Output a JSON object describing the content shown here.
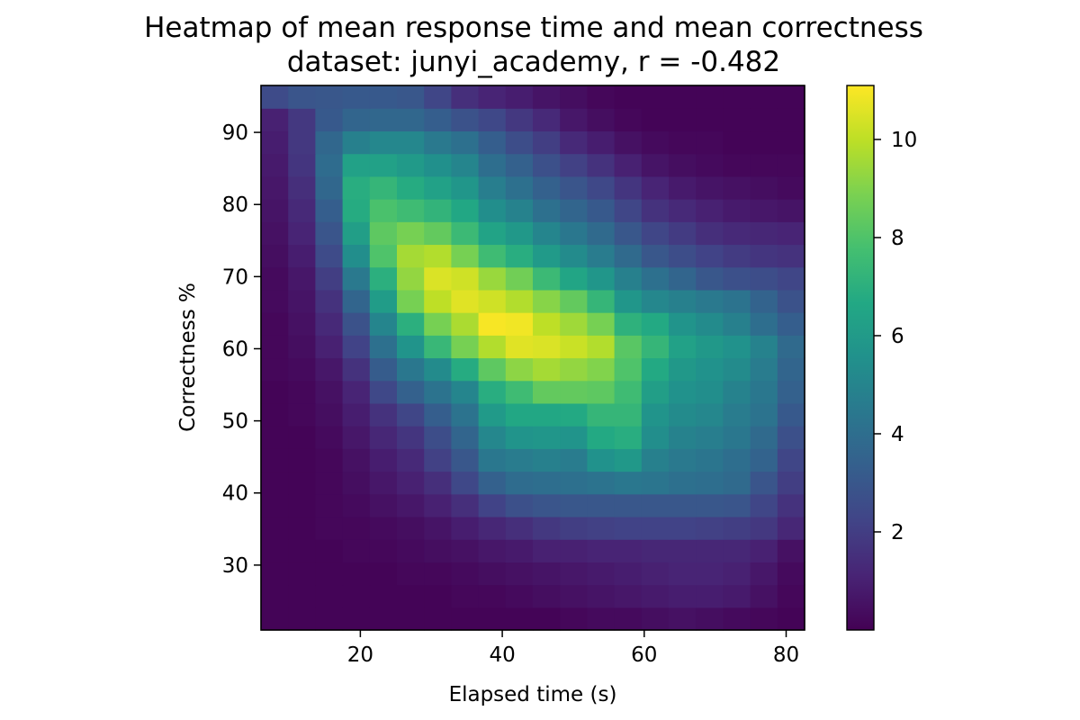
{
  "chart_data": {
    "type": "heatmap",
    "title": "Heatmap of mean response time and mean correctness",
    "subtitle": "dataset: junyi_academy, r = -0.482",
    "xlabel": "Elapsed time (s)",
    "ylabel": "Correctness %",
    "xlim": [
      6,
      82.6
    ],
    "ylim": [
      21,
      96.5
    ],
    "x_ticks": [
      20,
      40,
      60,
      80
    ],
    "y_ticks": [
      30,
      40,
      50,
      60,
      70,
      80,
      90
    ],
    "colorbar": {
      "range": [
        0,
        11.1
      ],
      "ticks": [
        2,
        4,
        6,
        8,
        10
      ],
      "colormap": "viridis"
    },
    "grid": false,
    "z": [
      [
        0.1,
        0.1,
        0.1,
        0.1,
        0.1,
        0.1,
        0.1,
        0.1,
        0.1,
        0.1,
        0.1,
        0.2,
        0.3,
        0.3,
        0.4,
        0.5,
        0.4,
        0.3,
        0.2,
        0.1
      ],
      [
        0.1,
        0.1,
        0.1,
        0.1,
        0.1,
        0.1,
        0.1,
        0.2,
        0.2,
        0.3,
        0.4,
        0.5,
        0.6,
        0.7,
        0.8,
        0.9,
        0.9,
        0.8,
        0.5,
        0.2
      ],
      [
        0.1,
        0.1,
        0.1,
        0.1,
        0.1,
        0.2,
        0.2,
        0.3,
        0.4,
        0.5,
        0.6,
        0.7,
        0.8,
        0.9,
        1.0,
        1.1,
        1.1,
        1.0,
        0.7,
        0.3
      ],
      [
        0.1,
        0.1,
        0.1,
        0.2,
        0.2,
        0.3,
        0.4,
        0.5,
        0.7,
        0.8,
        1.0,
        1.0,
        1.1,
        1.1,
        1.2,
        1.2,
        1.2,
        1.2,
        1.0,
        0.5
      ],
      [
        0.1,
        0.1,
        0.2,
        0.2,
        0.3,
        0.4,
        0.6,
        0.9,
        1.2,
        1.5,
        1.8,
        2.0,
        2.1,
        2.2,
        2.2,
        2.2,
        2.1,
        2.0,
        1.8,
        1.2
      ],
      [
        0.1,
        0.1,
        0.2,
        0.3,
        0.5,
        0.7,
        1.0,
        1.5,
        2.2,
        2.7,
        2.9,
        3.0,
        3.0,
        3.0,
        3.0,
        3.0,
        3.0,
        2.9,
        2.3,
        1.6
      ],
      [
        0.1,
        0.1,
        0.2,
        0.4,
        0.7,
        1.0,
        1.5,
        2.4,
        3.4,
        3.9,
        4.0,
        4.1,
        4.2,
        4.4,
        4.3,
        4.1,
        4.0,
        3.8,
        2.9,
        2.0
      ],
      [
        0.1,
        0.1,
        0.2,
        0.5,
        0.9,
        1.3,
        2.1,
        3.0,
        4.4,
        4.6,
        4.8,
        4.6,
        5.6,
        5.9,
        4.8,
        4.5,
        4.3,
        4.0,
        3.5,
        2.3
      ],
      [
        0.1,
        0.1,
        0.3,
        0.7,
        1.2,
        1.7,
        2.6,
        3.6,
        5.1,
        5.7,
        5.8,
        5.7,
        6.7,
        6.9,
        5.4,
        4.9,
        4.7,
        4.4,
        3.8,
        2.7
      ],
      [
        0.1,
        0.2,
        0.4,
        0.9,
        1.6,
        2.3,
        3.3,
        4.2,
        6.0,
        6.6,
        6.6,
        6.7,
        7.3,
        7.3,
        5.7,
        5.3,
        5.1,
        4.6,
        4.2,
        3.1
      ],
      [
        0.1,
        0.2,
        0.5,
        1.1,
        2.4,
        3.4,
        4.2,
        5.0,
        6.9,
        7.6,
        8.4,
        8.4,
        8.3,
        7.6,
        6.2,
        5.6,
        5.4,
        4.9,
        4.4,
        3.4
      ],
      [
        0.2,
        0.3,
        0.7,
        1.6,
        3.2,
        4.4,
        5.3,
        6.8,
        8.3,
        9.2,
        9.6,
        9.3,
        9.0,
        8.0,
        6.7,
        5.9,
        5.6,
        5.3,
        4.6,
        3.6
      ],
      [
        0.2,
        0.4,
        1.0,
        2.2,
        4.1,
        5.7,
        7.4,
        8.8,
        9.8,
        10.6,
        10.5,
        10.2,
        9.8,
        8.2,
        7.3,
        6.3,
        5.9,
        5.6,
        4.9,
        3.8
      ],
      [
        0.2,
        0.5,
        1.3,
        2.8,
        5.0,
        7.0,
        8.8,
        9.7,
        11.0,
        10.9,
        10.0,
        9.5,
        8.8,
        7.1,
        6.7,
        5.7,
        5.3,
        4.8,
        4.0,
        3.3
      ],
      [
        0.3,
        0.6,
        1.6,
        3.6,
        6.1,
        8.8,
        10.0,
        10.6,
        10.3,
        9.8,
        9.1,
        8.4,
        7.3,
        5.8,
        5.1,
        4.8,
        4.5,
        4.2,
        3.5,
        2.8
      ],
      [
        0.3,
        0.7,
        2.0,
        4.5,
        7.0,
        9.3,
        10.5,
        10.3,
        9.4,
        8.7,
        7.5,
        6.5,
        5.8,
        4.8,
        4.1,
        3.6,
        3.0,
        2.7,
        2.6,
        2.3
      ],
      [
        0.4,
        0.9,
        2.5,
        5.4,
        8.0,
        9.6,
        9.8,
        8.8,
        7.6,
        6.9,
        6.0,
        5.3,
        4.6,
        3.8,
        3.0,
        2.6,
        2.2,
        1.9,
        1.7,
        1.6
      ],
      [
        0.5,
        1.1,
        2.9,
        6.2,
        8.3,
        8.8,
        8.4,
        7.5,
        6.4,
        5.9,
        5.0,
        4.4,
        3.8,
        3.0,
        2.3,
        1.9,
        1.5,
        1.3,
        1.2,
        1.1
      ],
      [
        0.6,
        1.3,
        3.3,
        6.8,
        7.9,
        7.6,
        7.2,
        6.6,
        5.4,
        4.9,
        4.1,
        3.6,
        3.1,
        2.3,
        1.6,
        1.3,
        1.0,
        0.8,
        0.7,
        0.6
      ],
      [
        0.7,
        1.5,
        3.7,
        6.9,
        7.3,
        6.8,
        6.3,
        5.8,
        4.7,
        4.1,
        3.4,
        2.9,
        2.4,
        1.7,
        1.1,
        0.8,
        0.6,
        0.5,
        0.4,
        0.3
      ],
      [
        0.8,
        1.7,
        3.9,
        6.3,
        6.3,
        6.0,
        5.5,
        5.0,
        4.0,
        3.4,
        2.7,
        2.1,
        1.6,
        1.0,
        0.6,
        0.4,
        0.3,
        0.2,
        0.2,
        0.2
      ],
      [
        0.9,
        1.8,
        3.7,
        4.8,
        5.1,
        5.1,
        4.5,
        4.1,
        3.3,
        2.6,
        2.0,
        1.3,
        0.9,
        0.5,
        0.3,
        0.2,
        0.2,
        0.1,
        0.1,
        0.1
      ],
      [
        1.0,
        1.8,
        3.1,
        3.6,
        3.7,
        3.7,
        3.3,
        2.8,
        2.4,
        1.8,
        1.3,
        0.7,
        0.4,
        0.2,
        0.1,
        0.1,
        0.1,
        0.1,
        0.1,
        0.1
      ],
      [
        2.5,
        2.9,
        3.0,
        3.1,
        3.1,
        3.0,
        2.3,
        1.5,
        1.1,
        0.9,
        0.6,
        0.4,
        0.2,
        0.1,
        0.1,
        0.1,
        0.1,
        0.1,
        0.1,
        0.1
      ]
    ]
  }
}
